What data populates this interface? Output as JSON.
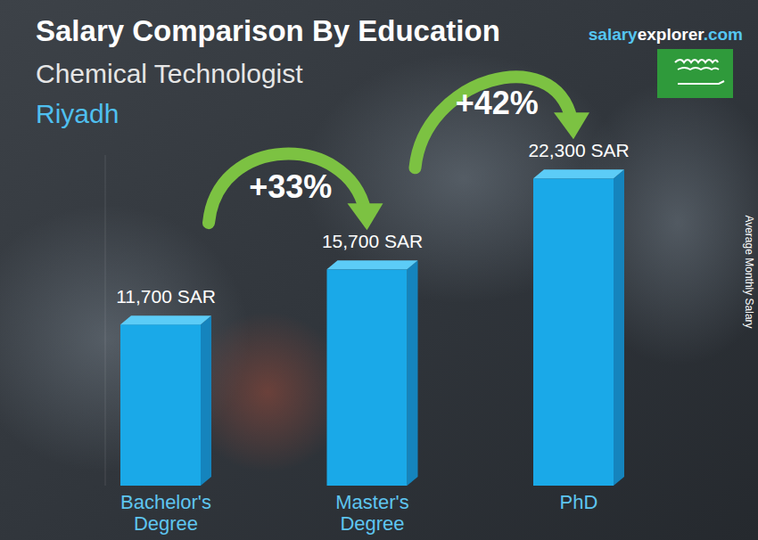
{
  "chart_data": {
    "type": "bar",
    "title": "Salary Comparison By Education",
    "subtitle": "Chemical Technologist",
    "location": "Riyadh",
    "source_parts": [
      "salary",
      "explorer",
      ".com"
    ],
    "y_label": "Average Monthly Salary",
    "categories": [
      "Bachelor's Degree",
      "Master's Degree",
      "PhD"
    ],
    "values": [
      11700,
      15700,
      22300
    ],
    "value_labels": [
      "11,700 SAR",
      "15,700 SAR",
      "22,300 SAR"
    ],
    "annotations": [
      "+33%",
      "+42%"
    ],
    "color": "#1aa9e8",
    "ylim": [
      0,
      24000
    ],
    "data_labels": true,
    "tick_labels": false,
    "grid": false
  }
}
